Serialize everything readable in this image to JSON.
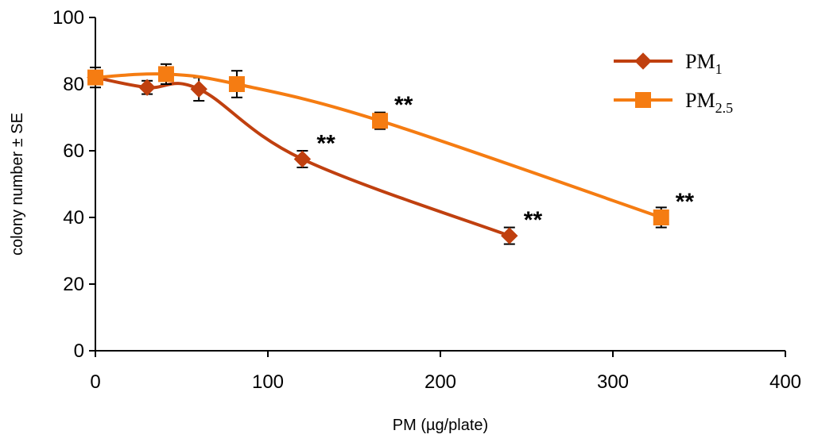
{
  "chart_data": {
    "type": "line",
    "title": "",
    "xlabel": "PM (µg/plate)",
    "ylabel": "colony number ± SE",
    "xlim": [
      0,
      400
    ],
    "ylim": [
      0,
      100
    ],
    "xticks": [
      "0",
      "100",
      "200",
      "300",
      "400"
    ],
    "yticks": [
      "0",
      "20",
      "40",
      "60",
      "80",
      "100"
    ],
    "grid": false,
    "legend_position": "top-right",
    "series": [
      {
        "name": "PM1",
        "legend_base": "PM",
        "legend_sub": "1",
        "color": "#C0400F",
        "marker": "diamond",
        "x": [
          0,
          30,
          60,
          120,
          240
        ],
        "y": [
          82,
          79,
          78.5,
          57.5,
          34.5
        ],
        "err": [
          2,
          2,
          3.5,
          2.5,
          2.5
        ],
        "significance": [
          "",
          "",
          "",
          "**",
          "**"
        ]
      },
      {
        "name": "PM2.5",
        "legend_base": "PM",
        "legend_sub": "2.5",
        "color": "#F57C12",
        "marker": "square",
        "x": [
          0,
          41,
          82,
          165,
          328
        ],
        "y": [
          82,
          83,
          80,
          69,
          40
        ],
        "err": [
          3,
          3,
          4,
          2.5,
          3
        ],
        "significance": [
          "",
          "",
          "",
          "**",
          "**"
        ]
      }
    ]
  }
}
